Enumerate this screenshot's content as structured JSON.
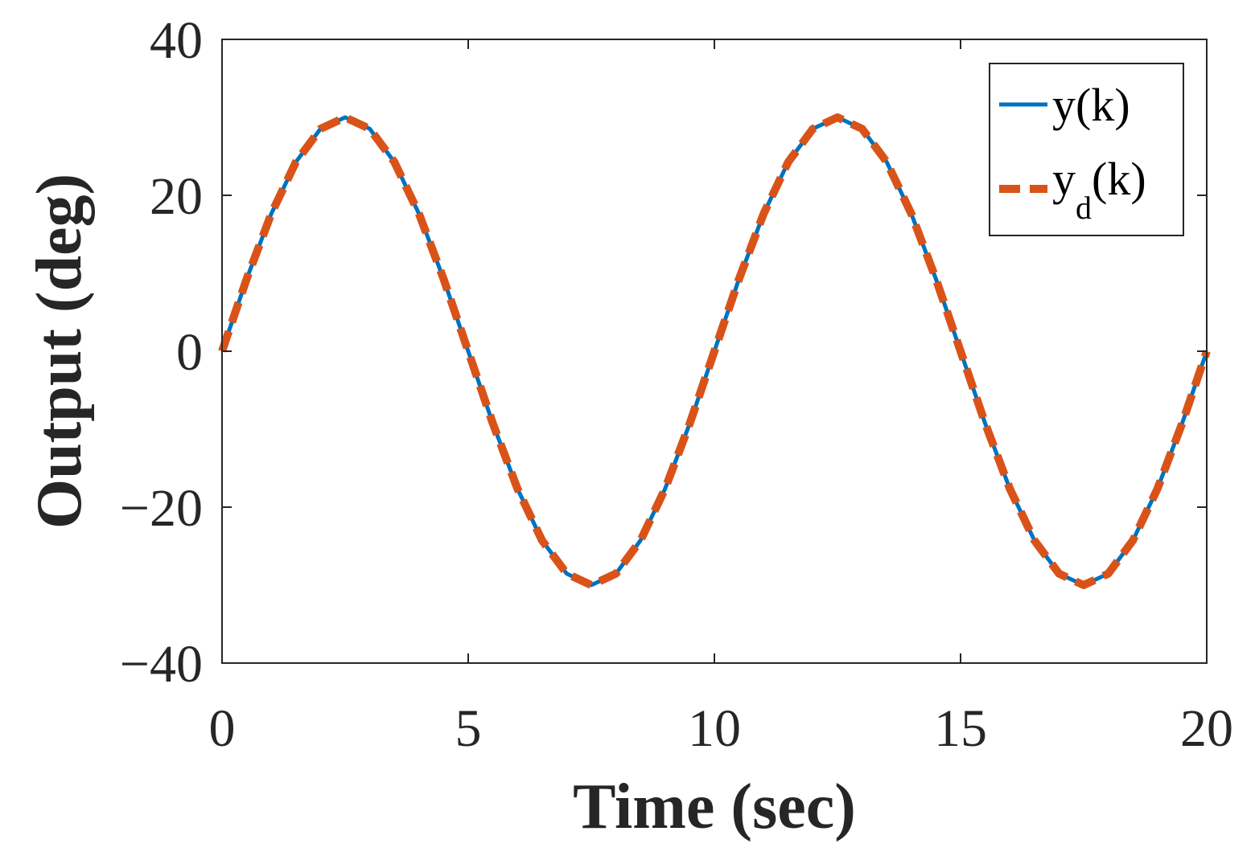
{
  "chart_data": {
    "type": "line",
    "title": "",
    "xlabel": "Time (sec)",
    "ylabel": "Output (deg)",
    "xlim": [
      0,
      20
    ],
    "ylim": [
      -40,
      40
    ],
    "xticks": [
      0,
      5,
      10,
      15,
      20
    ],
    "yticks": [
      -40,
      -20,
      0,
      20,
      40
    ],
    "xtick_labels": [
      "0",
      "5",
      "10",
      "15",
      "20"
    ],
    "ytick_labels": [
      "−40",
      "−20",
      "0",
      "20",
      "40"
    ],
    "grid": false,
    "legend_position": "top-right",
    "series": [
      {
        "name": "y(k)",
        "legend_main": "y(k)",
        "legend_sub": "",
        "legend_tail": "",
        "style": "solid",
        "color": "#0072BD",
        "x": [
          0,
          0.5,
          1,
          1.5,
          2,
          2.5,
          3,
          3.5,
          4,
          4.5,
          5,
          5.5,
          6,
          6.5,
          7,
          7.5,
          8,
          8.5,
          9,
          9.5,
          10,
          10.5,
          11,
          11.5,
          12,
          12.5,
          13,
          13.5,
          14,
          14.5,
          15,
          15.5,
          16,
          16.5,
          17,
          17.5,
          18,
          18.5,
          19,
          19.5,
          20
        ],
        "y": [
          0,
          9.27,
          17.63,
          24.27,
          28.53,
          30,
          28.53,
          24.27,
          17.63,
          9.27,
          0,
          -9.27,
          -17.63,
          -24.27,
          -28.53,
          -30,
          -28.53,
          -24.27,
          -17.63,
          -9.27,
          0,
          9.27,
          17.63,
          24.27,
          28.53,
          30,
          28.53,
          24.27,
          17.63,
          9.27,
          0,
          -9.27,
          -17.63,
          -24.27,
          -28.53,
          -30,
          -28.53,
          -24.27,
          -17.63,
          -9.27,
          0
        ]
      },
      {
        "name": "yd(k)",
        "legend_main": "y",
        "legend_sub": "d",
        "legend_tail": "(k)",
        "style": "dashed",
        "color": "#D95319",
        "x": [
          0,
          0.5,
          1,
          1.5,
          2,
          2.5,
          3,
          3.5,
          4,
          4.5,
          5,
          5.5,
          6,
          6.5,
          7,
          7.5,
          8,
          8.5,
          9,
          9.5,
          10,
          10.5,
          11,
          11.5,
          12,
          12.5,
          13,
          13.5,
          14,
          14.5,
          15,
          15.5,
          16,
          16.5,
          17,
          17.5,
          18,
          18.5,
          19,
          19.5,
          20
        ],
        "y": [
          0,
          9.27,
          17.63,
          24.27,
          28.53,
          30,
          28.53,
          24.27,
          17.63,
          9.27,
          0,
          -9.27,
          -17.63,
          -24.27,
          -28.53,
          -30,
          -28.53,
          -24.27,
          -17.63,
          -9.27,
          0,
          9.27,
          17.63,
          24.27,
          28.53,
          30,
          28.53,
          24.27,
          17.63,
          9.27,
          0,
          -9.27,
          -17.63,
          -24.27,
          -28.53,
          -30,
          -28.53,
          -24.27,
          -17.63,
          -9.27,
          0
        ]
      }
    ]
  }
}
